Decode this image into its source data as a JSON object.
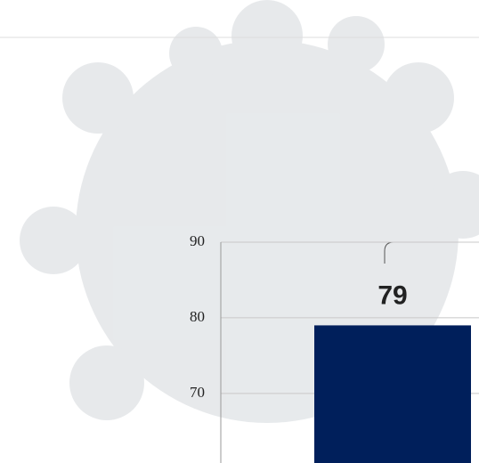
{
  "chart_data": {
    "type": "bar",
    "categories": [
      null
    ],
    "values": [
      79
    ],
    "color": "#001f5b",
    "ylim": [
      60.8,
      90
    ],
    "yticks": [
      70,
      80,
      90
    ],
    "grid": true
  }
}
